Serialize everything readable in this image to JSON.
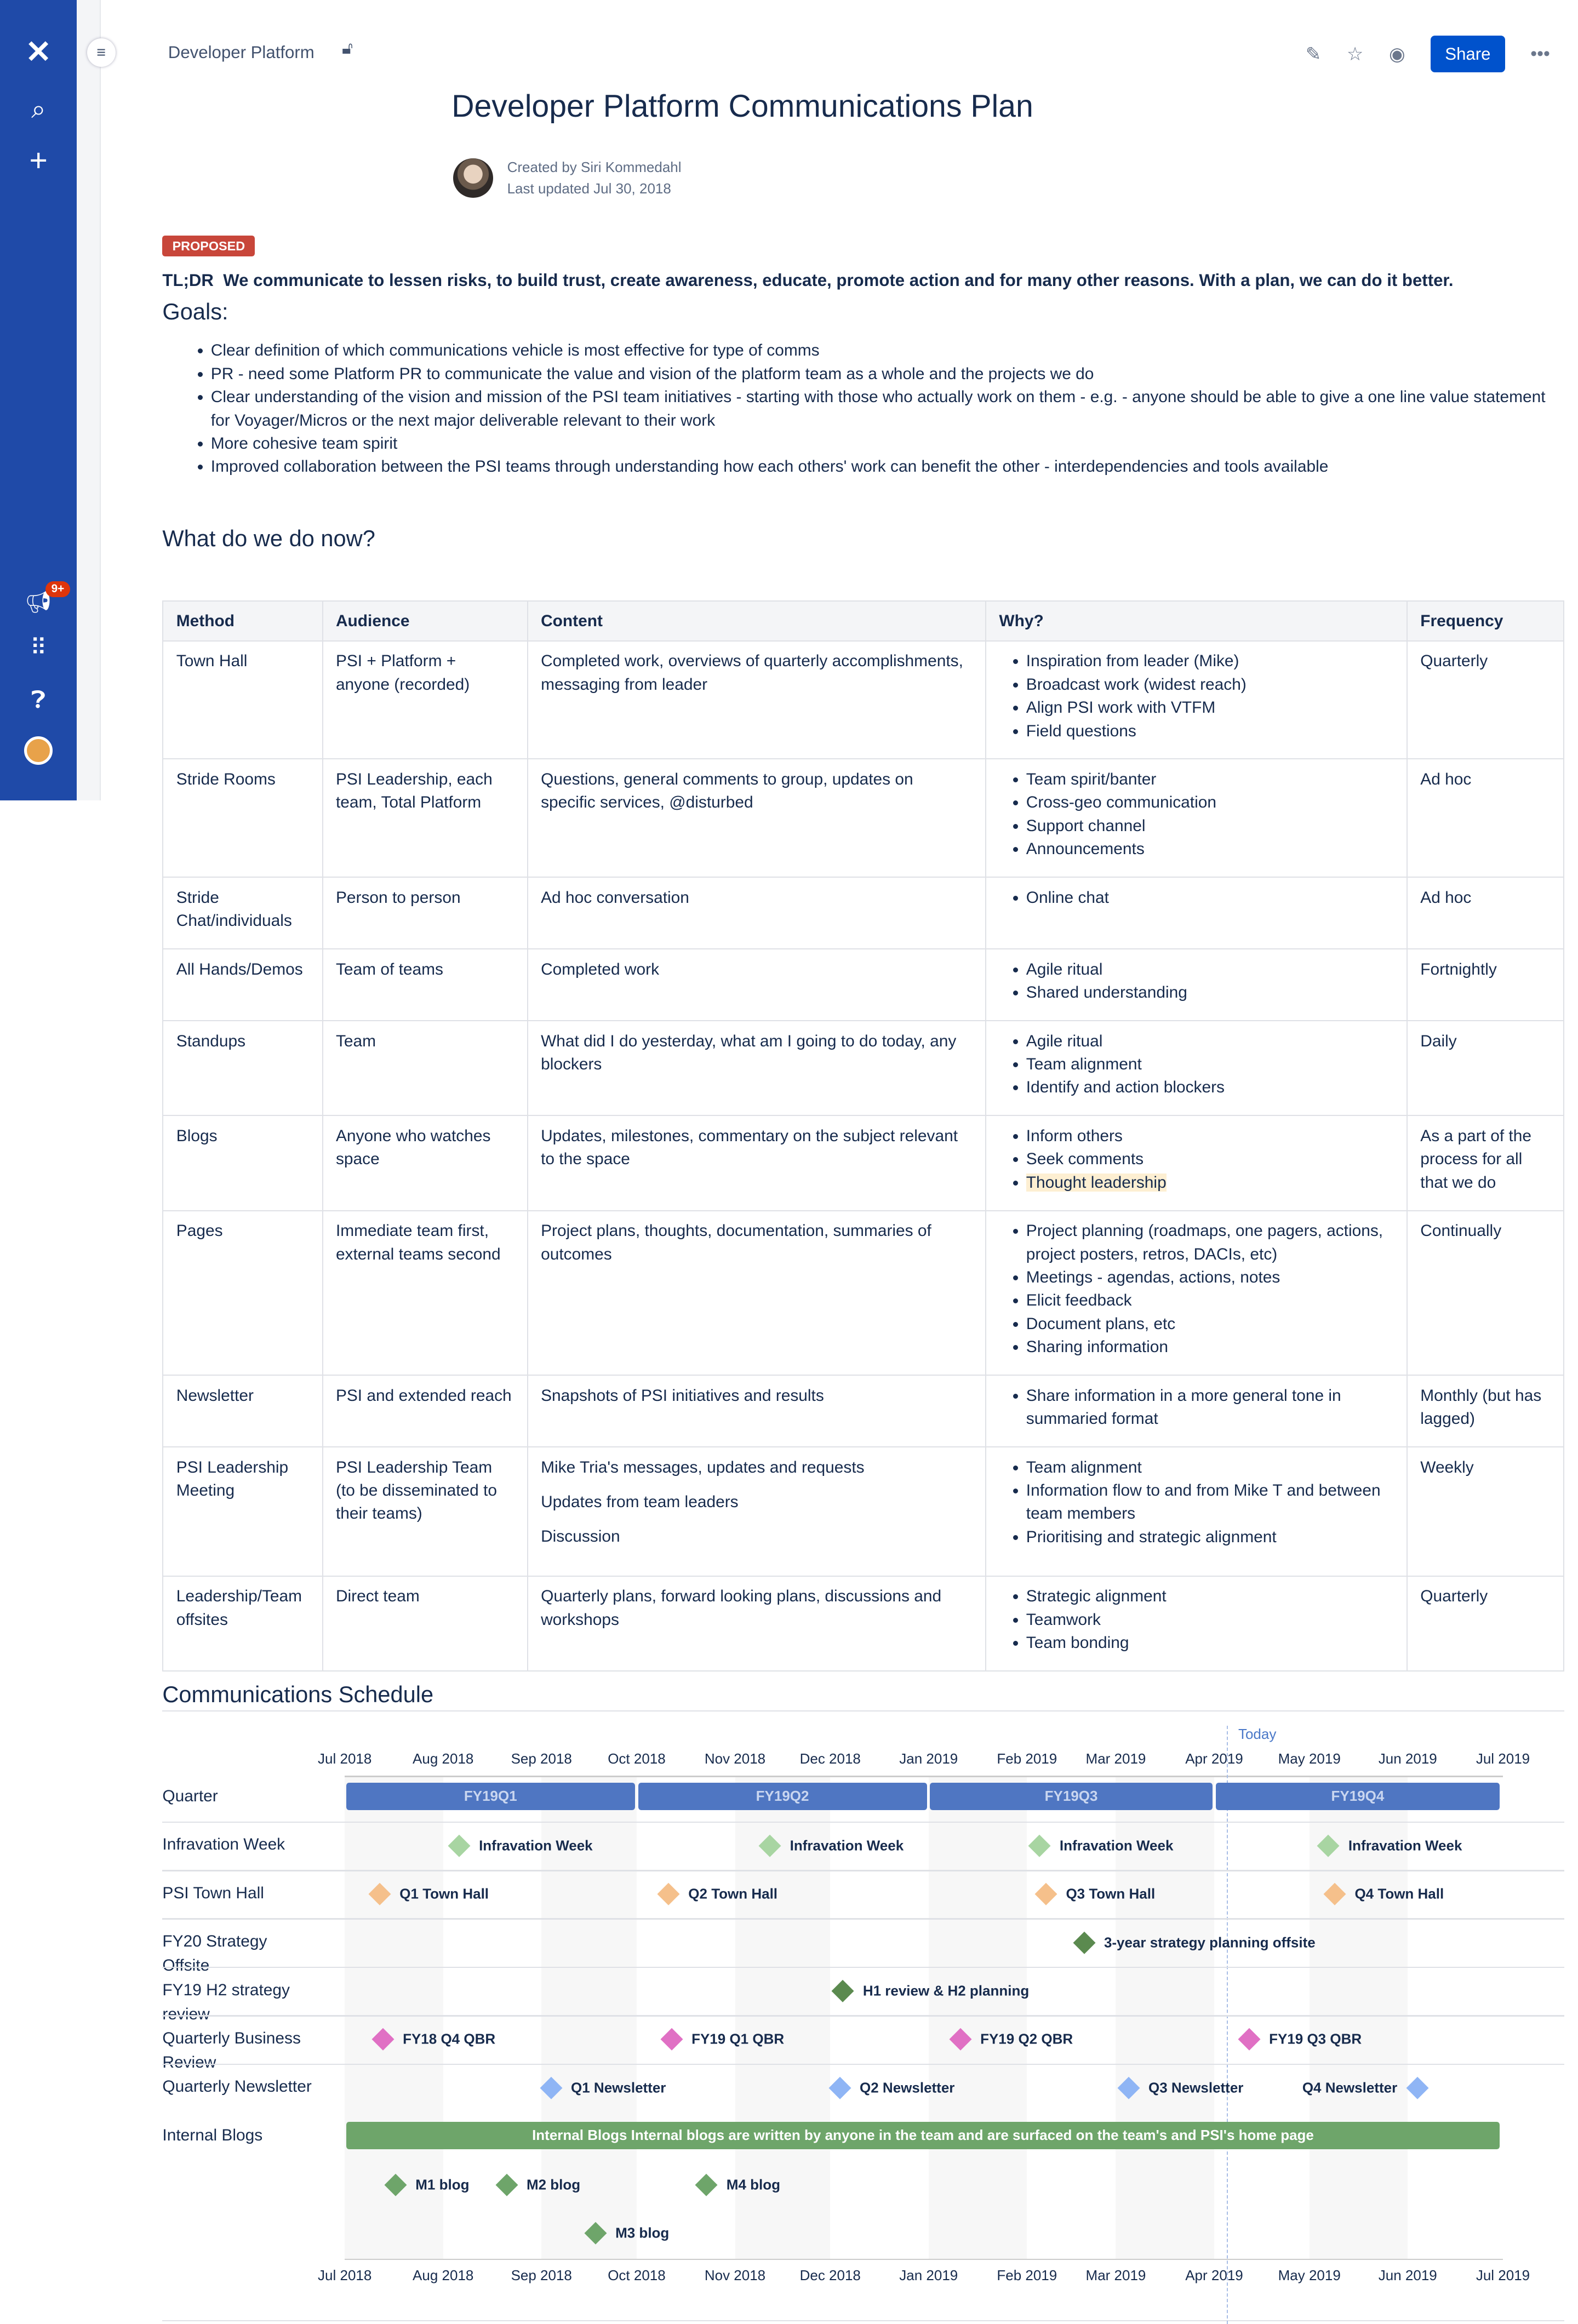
{
  "sidebar": {
    "icons": [
      "confluence-logo",
      "search-icon",
      "create-icon",
      "notifications-icon",
      "app-switcher-icon",
      "help-icon",
      "profile-avatar"
    ],
    "notification_badge": "9+"
  },
  "header": {
    "breadcrumb": "Developer Platform",
    "share_label": "Share",
    "accent": "#0052cc"
  },
  "page": {
    "title": "Developer Platform Communications Plan",
    "created_by": "Created by Siri Kommedahl",
    "last_updated": "Last updated Jul 30, 2018",
    "status": "PROPOSED",
    "status_color": "#c8463a",
    "tldr_label": "TL;DR",
    "tldr": "We communicate to lessen risks, to build trust, create awareness, educate, promote action and for many other reasons. With a plan, we can do it better.",
    "goals_heading": "Goals:",
    "goals": [
      "Clear definition of which communications vehicle is most effective for type of comms",
      "PR - need some Platform PR to communicate the value and vision of the platform team as a whole and the projects we do",
      "Clear understanding of the vision and mission of the PSI team initiatives - starting with those who actually work on them - e.g. - anyone should be able to give a one line value statement for Voyager/Micros or the next major deliverable relevant to their work",
      "More cohesive team spirit",
      "Improved collaboration between the PSI teams through understanding how each others' work can benefit the other - interdependencies and tools available"
    ],
    "now_heading": "What do we do now?",
    "schedule_heading": "Communications Schedule"
  },
  "table": {
    "headers": [
      "Method",
      "Audience",
      "Content",
      "Why?",
      "Frequency"
    ],
    "rows": [
      {
        "method": "Town Hall",
        "audience": "PSI + Platform + anyone (recorded)",
        "content": [
          "Completed work, overviews of quarterly accomplishments, messaging from leader"
        ],
        "why": [
          "Inspiration from leader (Mike)",
          "Broadcast work (widest reach)",
          "Align PSI work with VTFM",
          "Field questions"
        ],
        "frequency": "Quarterly"
      },
      {
        "method": "Stride Rooms",
        "audience": "PSI Leadership, each team, Total Platform",
        "content": [
          "Questions, general comments to group, updates on specific services, @disturbed"
        ],
        "why": [
          "Team spirit/banter",
          "Cross-geo communication",
          "Support channel",
          "Announcements"
        ],
        "frequency": "Ad hoc"
      },
      {
        "method": "Stride Chat/individuals",
        "audience": "Person to person",
        "content": [
          "Ad hoc conversation"
        ],
        "why": [
          "Online chat"
        ],
        "frequency": "Ad hoc"
      },
      {
        "method": "All Hands/Demos",
        "audience": "Team of teams",
        "content": [
          "Completed work"
        ],
        "why": [
          "Agile ritual",
          "Shared understanding"
        ],
        "frequency": "Fortnightly"
      },
      {
        "method": "Standups",
        "audience": "Team",
        "content": [
          "What did I do yesterday, what am I going to do today, any blockers"
        ],
        "why": [
          "Agile ritual",
          "Team alignment",
          "Identify and action blockers"
        ],
        "frequency": "Daily"
      },
      {
        "method": "Blogs",
        "audience": "Anyone who watches space",
        "content": [
          "Updates, milestones, commentary on the subject relevant to the space"
        ],
        "why": [
          "Inform others",
          "Seek comments",
          {
            "text": "Thought leadership",
            "highlight": true
          }
        ],
        "frequency": "As a part of the process for all that we do"
      },
      {
        "method": "Pages",
        "audience": "Immediate team first, external teams second",
        "content": [
          "Project plans, thoughts, documentation, summaries of outcomes"
        ],
        "why": [
          "Project planning (roadmaps, one pagers, actions, project posters, retros, DACIs, etc)",
          "Meetings - agendas, actions, notes",
          "Elicit feedback",
          "Document plans, etc",
          "Sharing information"
        ],
        "frequency": "Continually"
      },
      {
        "method": "Newsletter",
        "audience": "PSI and extended reach",
        "content": [
          "Snapshots of PSI initiatives and results"
        ],
        "why": [
          "Share information in a more general tone in summaried format"
        ],
        "frequency": "Monthly (but has lagged)"
      },
      {
        "method": "PSI Leadership Meeting",
        "audience": "PSI Leadership Team (to be disseminated to their teams)",
        "content": [
          "Mike Tria's messages, updates and requests",
          "Updates from team leaders",
          "Discussion"
        ],
        "why": [
          "Team alignment",
          "Information flow to and from Mike T and between team members",
          "Prioritising and strategic alignment"
        ],
        "frequency": "Weekly"
      },
      {
        "method": "Leadership/Team offsites",
        "audience": "Direct team",
        "content": [
          "Quarterly plans, forward looking plans, discussions and workshops"
        ],
        "why": [
          "Strategic alignment",
          "Teamwork",
          "Team bonding"
        ],
        "frequency": "Quarterly"
      }
    ]
  },
  "schedule": {
    "range": [
      "2018-07-01",
      "2019-07-01"
    ],
    "months": [
      "Jul 2018",
      "Aug 2018",
      "Sep 2018",
      "Oct 2018",
      "Nov 2018",
      "Dec 2018",
      "Jan 2019",
      "Feb 2019",
      "Mar 2019",
      "Apr 2019",
      "May 2019",
      "Jun 2019",
      "Jul 2019"
    ],
    "today_label": "Today",
    "today": "2019-04-05",
    "rows": [
      {
        "label": "Quarter",
        "bars": [
          {
            "label": "FY19Q1",
            "start": "2018-07-01",
            "end": "2018-09-30",
            "color": "#4f76c2",
            "text": "#c9d6f0"
          },
          {
            "label": "FY19Q2",
            "start": "2018-10-01",
            "end": "2018-12-31",
            "color": "#4f76c2",
            "text": "#c9d6f0"
          },
          {
            "label": "FY19Q3",
            "start": "2019-01-01",
            "end": "2019-03-31",
            "color": "#4f76c2",
            "text": "#c9d6f0"
          },
          {
            "label": "FY19Q4",
            "start": "2019-04-01",
            "end": "2019-06-30",
            "color": "#4f76c2",
            "text": "#c9d6f0"
          }
        ]
      },
      {
        "label": "Infravation Week",
        "color": "#a8d5a2",
        "milestones": [
          {
            "label": "Infravation Week",
            "date": "2018-08-06"
          },
          {
            "label": "Infravation Week",
            "date": "2018-11-12"
          },
          {
            "label": "Infravation Week",
            "date": "2019-02-05"
          },
          {
            "label": "Infravation Week",
            "date": "2019-05-07"
          }
        ]
      },
      {
        "label": "PSI Town Hall",
        "color": "#f5c08b",
        "milestones": [
          {
            "label": "Q1 Town Hall",
            "date": "2018-07-12"
          },
          {
            "label": "Q2 Town Hall",
            "date": "2018-10-11"
          },
          {
            "label": "Q3 Town Hall",
            "date": "2019-02-07"
          },
          {
            "label": "Q4 Town Hall",
            "date": "2019-05-09"
          }
        ]
      },
      {
        "label": "FY20 Strategy Offsite",
        "color": "#5b8a4f",
        "milestones": [
          {
            "label": "3-year strategy planning offsite",
            "date": "2019-02-19"
          }
        ]
      },
      {
        "label": "FY19 H2 strategy review",
        "color": "#5b8a4f",
        "milestones": [
          {
            "label": "H1 review & H2 planning",
            "date": "2018-12-05"
          }
        ]
      },
      {
        "label": "Quarterly Business Review",
        "color": "#e070c4",
        "milestones": [
          {
            "label": "FY18 Q4 QBR",
            "date": "2018-07-13"
          },
          {
            "label": "FY19 Q1 QBR",
            "date": "2018-10-12"
          },
          {
            "label": "FY19 Q2 QBR",
            "date": "2019-01-11"
          },
          {
            "label": "FY19 Q3 QBR",
            "date": "2019-04-12"
          }
        ]
      },
      {
        "label": "Quarterly Newsletter",
        "color": "#8fb5f5",
        "milestones": [
          {
            "label": "Q1 Newsletter",
            "date": "2018-09-04"
          },
          {
            "label": "Q2 Newsletter",
            "date": "2018-12-04"
          },
          {
            "label": "Q3 Newsletter",
            "date": "2019-03-05"
          },
          {
            "label": "Q4 Newsletter",
            "date": "2019-06-04",
            "label_side": "left"
          }
        ]
      },
      {
        "label": "Internal Blogs",
        "color": "#6ea56a",
        "bars": [
          {
            "label": "Internal Blogs Internal blogs are written by anyone in the team and are surfaced on the team's and PSI's home page",
            "start": "2018-07-01",
            "end": "2019-06-30",
            "color": "#6ea56a",
            "text": "#ffffff"
          }
        ],
        "sub_milestones": [
          [
            {
              "label": "M1 blog",
              "date": "2018-07-17"
            },
            {
              "label": "M2 blog",
              "date": "2018-08-21"
            },
            {
              "label": "M4 blog",
              "date": "2018-10-23"
            }
          ],
          [
            {
              "label": "M3 blog",
              "date": "2018-09-18"
            }
          ]
        ]
      }
    ]
  }
}
